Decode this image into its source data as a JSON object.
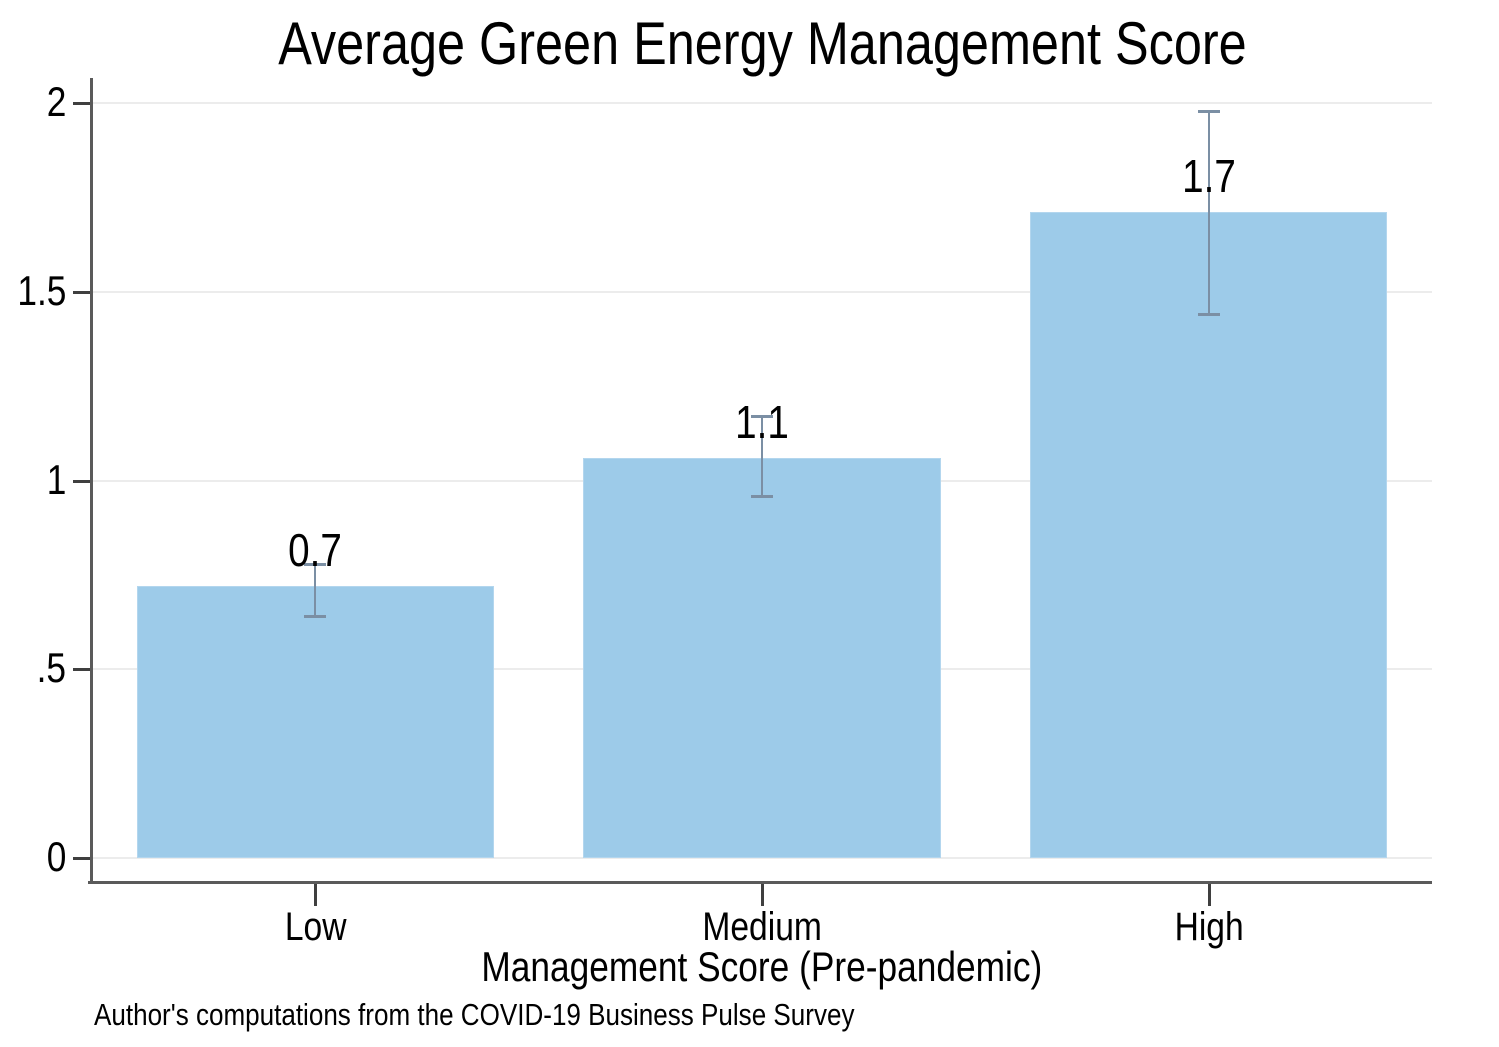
{
  "figure": {
    "title": "Average Green Energy Management Score",
    "note": "Author's computations from the COVID-19 Business Pulse Survey"
  },
  "chart_data": {
    "type": "bar",
    "title": "Average Green Energy Management Score",
    "categories": [
      "Low",
      "Medium",
      "High"
    ],
    "values": [
      0.72,
      1.06,
      1.71
    ],
    "data_labels": [
      "0.7",
      "1.1",
      "1.7"
    ],
    "error_bars": {
      "low": [
        0.64,
        0.96,
        1.44
      ],
      "high": [
        0.78,
        1.17,
        1.98
      ]
    },
    "xlabel": "Management Score (Pre-pandemic)",
    "ylabel": "",
    "ylim": [
      0,
      2
    ],
    "yticks": [
      {
        "value": 0,
        "label": "0"
      },
      {
        "value": 0.5,
        "label": ".5"
      },
      {
        "value": 1,
        "label": "1"
      },
      {
        "value": 1.5,
        "label": "1.5"
      },
      {
        "value": 2,
        "label": "2"
      }
    ],
    "grid": true,
    "legend": "none",
    "note": "Author's computations from the COVID-19 Business Pulse Survey",
    "colors": {
      "bar_fill": "#9dcbe9",
      "bar_border": "#b3d6ee",
      "error_bar": "#7b8fa4",
      "gridline": "#ececec",
      "axis_line": "#5a5a5a",
      "tick": "#3f3f3f",
      "text": "#000000",
      "background": "#ffffff"
    }
  }
}
